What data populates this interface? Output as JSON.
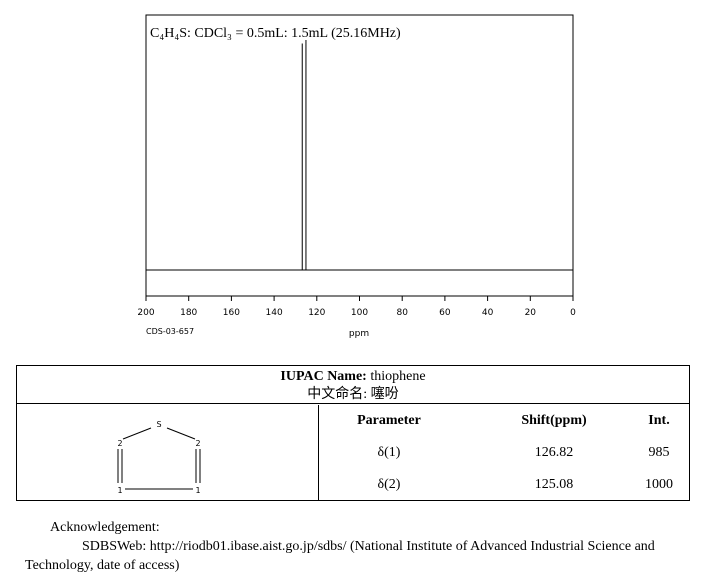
{
  "chart_data": {
    "type": "line",
    "title": "C₄H₄S: CDCl₃ = 0.5mL: 1.5mL (25.16MHz)",
    "xlabel": "ppm",
    "xlim": [
      200,
      0
    ],
    "x_ticks": [
      200,
      180,
      160,
      140,
      120,
      100,
      80,
      60,
      40,
      20,
      0
    ],
    "peaks": [
      {
        "shift": 126.82,
        "intensity": 985
      },
      {
        "shift": 125.08,
        "intensity": 1000
      }
    ],
    "code_label": "CDS-03-657"
  },
  "compound": {
    "iupac_label": "IUPAC Name:",
    "iupac_value": "thiophene",
    "chinese_label": "中文命名:",
    "chinese_value": "噻吩",
    "structure": {
      "atoms": [
        "S",
        "2",
        "2",
        "1",
        "1"
      ]
    }
  },
  "table": {
    "headers": [
      "Parameter",
      "Shift(ppm)",
      "Int."
    ],
    "rows": [
      [
        "δ(1)",
        "126.82",
        "985"
      ],
      [
        "δ(2)",
        "125.08",
        "1000"
      ]
    ]
  },
  "acknowledgement": {
    "heading": "Acknowledgement:",
    "text": "SDBSWeb: http://riodb01.ibase.aist.go.jp/sdbs/ (National Institute of Advanced Industrial Science and",
    "text2": "Technology, date of access)"
  }
}
